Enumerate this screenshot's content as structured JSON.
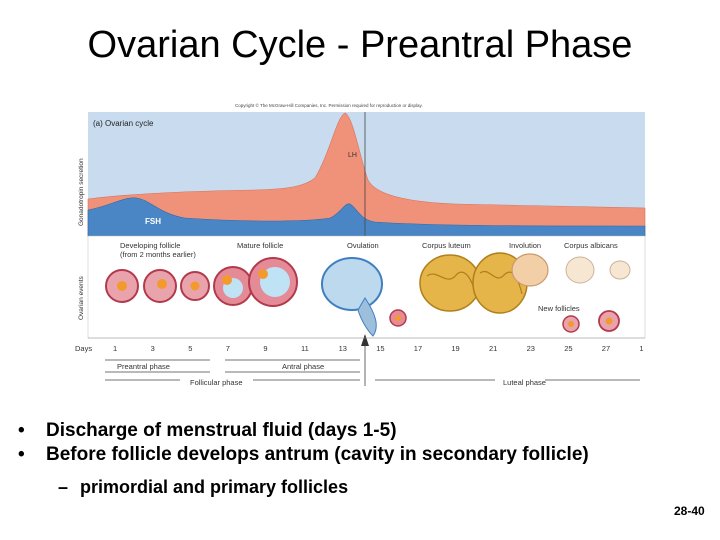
{
  "slide": {
    "title": "Ovarian Cycle - Preantral Phase",
    "slide_number": "28-40"
  },
  "figure": {
    "copyright": "Copyright © The McGraw-Hill Companies, Inc. Permission required for reproduction or display.",
    "panel_label": "(a) Ovarian cycle",
    "y_label_top": "Gonadotropin secretion",
    "y_label_bottom": "Ovarian events",
    "lh_label": "LH",
    "fsh_label": "FSH",
    "events": [
      "Developing follicle\n(from 2 months earlier)",
      "Mature follicle",
      "Ovulation",
      "Corpus luteum",
      "Involution",
      "Corpus albicans"
    ],
    "new_follicles_label": "New follicles",
    "days_label": "Days",
    "days": [
      "1",
      "3",
      "5",
      "7",
      "9",
      "11",
      "13",
      "15",
      "17",
      "19",
      "21",
      "23",
      "25",
      "27",
      "1"
    ],
    "phases": {
      "preantral": "Preantral phase",
      "antral": "Antral phase",
      "follicular": "Follicular phase",
      "luteal": "Luteal phase"
    },
    "colors": {
      "lh_fill": "#f0927a",
      "fsh_fill": "#4a86c5",
      "panel_bg": "#c9dcef",
      "events_bg": "#ffffff"
    }
  },
  "bullets": [
    "Discharge of menstrual fluid (days 1-5)",
    "Before follicle develops antrum (cavity in secondary follicle)"
  ],
  "sub_bullets": [
    "primordial and primary follicles"
  ]
}
